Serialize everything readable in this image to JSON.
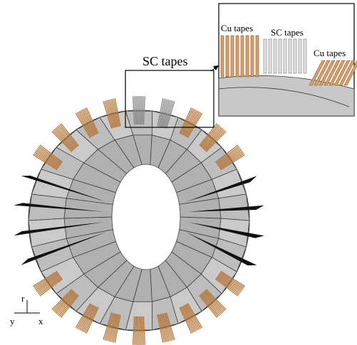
{
  "callout": {
    "label": "SC tapes"
  },
  "inset": {
    "labels": [
      "Cu tapes",
      "SC tapes",
      "Cu tapes"
    ]
  },
  "axes": {
    "up": "r",
    "left": "y",
    "right": "x"
  }
}
